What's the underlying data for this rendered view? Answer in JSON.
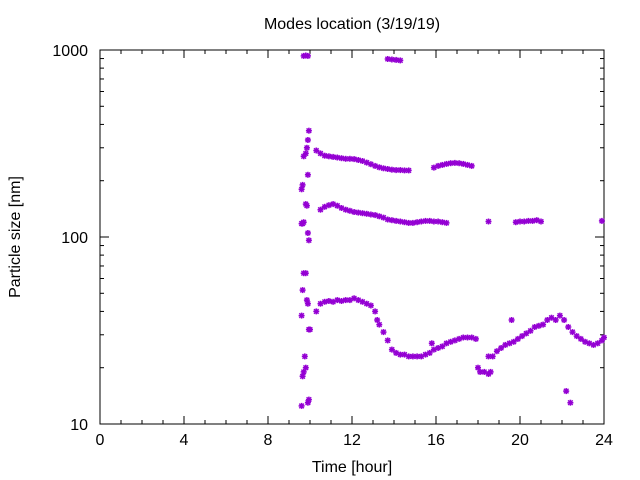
{
  "chart_data": {
    "type": "scatter",
    "title": "Modes location (3/19/19)",
    "xlabel": "Time [hour]",
    "ylabel": "Particle size [nm]",
    "xlim": [
      0,
      24
    ],
    "ylim": [
      10,
      1000
    ],
    "yscale": "log",
    "xticks": [
      0,
      4,
      8,
      12,
      16,
      20,
      24
    ],
    "yticks": [
      10,
      100,
      1000
    ],
    "grid": false,
    "marker_color": "#9400d3",
    "series": [
      {
        "points": [
          [
            9.6,
            12.5
          ],
          [
            9.65,
            18
          ],
          [
            9.7,
            19
          ],
          [
            9.75,
            23
          ],
          [
            9.8,
            20
          ],
          [
            9.9,
            13
          ],
          [
            9.95,
            13.5
          ],
          [
            9.6,
            38
          ],
          [
            9.65,
            52
          ],
          [
            9.7,
            64
          ],
          [
            9.8,
            64
          ],
          [
            9.85,
            46
          ],
          [
            9.9,
            44
          ],
          [
            9.95,
            32
          ],
          [
            10.0,
            32
          ],
          [
            9.6,
            118
          ],
          [
            9.65,
            118
          ],
          [
            9.7,
            120
          ],
          [
            9.8,
            150
          ],
          [
            9.85,
            147
          ],
          [
            9.9,
            105
          ],
          [
            9.95,
            96
          ],
          [
            9.6,
            180
          ],
          [
            9.65,
            190
          ],
          [
            9.7,
            270
          ],
          [
            9.8,
            280
          ],
          [
            9.85,
            300
          ],
          [
            9.9,
            330
          ],
          [
            9.95,
            370
          ],
          [
            9.9,
            215
          ],
          [
            9.7,
            930
          ],
          [
            9.8,
            935
          ],
          [
            9.9,
            930
          ],
          [
            13.7,
            895
          ],
          [
            13.9,
            890
          ],
          [
            14.1,
            885
          ],
          [
            14.3,
            880
          ],
          [
            10.3,
            290
          ],
          [
            10.5,
            280
          ],
          [
            10.7,
            272
          ],
          [
            10.9,
            270
          ],
          [
            11.1,
            268
          ],
          [
            11.3,
            266
          ],
          [
            11.5,
            264
          ],
          [
            11.7,
            262
          ],
          [
            11.9,
            262
          ],
          [
            12.1,
            261
          ],
          [
            12.3,
            258
          ],
          [
            12.5,
            255
          ],
          [
            12.7,
            250
          ],
          [
            12.9,
            245
          ],
          [
            13.1,
            240
          ],
          [
            13.3,
            236
          ],
          [
            13.5,
            233
          ],
          [
            13.7,
            231
          ],
          [
            13.9,
            229
          ],
          [
            14.1,
            228
          ],
          [
            14.3,
            228
          ],
          [
            14.5,
            227
          ],
          [
            14.7,
            227
          ],
          [
            15.9,
            235
          ],
          [
            16.1,
            240
          ],
          [
            16.3,
            243
          ],
          [
            16.5,
            246
          ],
          [
            16.7,
            248
          ],
          [
            16.9,
            249
          ],
          [
            17.1,
            248
          ],
          [
            17.3,
            246
          ],
          [
            17.5,
            243
          ],
          [
            17.7,
            240
          ],
          [
            10.5,
            140
          ],
          [
            10.7,
            145
          ],
          [
            10.9,
            148
          ],
          [
            11.1,
            150
          ],
          [
            11.3,
            147
          ],
          [
            11.5,
            143
          ],
          [
            11.7,
            140
          ],
          [
            11.9,
            138
          ],
          [
            12.1,
            136
          ],
          [
            12.3,
            135
          ],
          [
            12.5,
            134
          ],
          [
            12.7,
            133
          ],
          [
            12.9,
            132
          ],
          [
            13.1,
            131
          ],
          [
            13.3,
            129
          ],
          [
            13.5,
            127
          ],
          [
            13.7,
            124
          ],
          [
            13.9,
            123
          ],
          [
            14.1,
            122
          ],
          [
            14.3,
            121
          ],
          [
            14.5,
            120
          ],
          [
            14.7,
            119
          ],
          [
            14.9,
            119
          ],
          [
            15.1,
            120
          ],
          [
            15.3,
            121
          ],
          [
            15.5,
            122
          ],
          [
            15.7,
            122
          ],
          [
            15.9,
            121
          ],
          [
            16.1,
            121
          ],
          [
            16.3,
            120
          ],
          [
            16.5,
            119
          ],
          [
            18.5,
            121
          ],
          [
            19.8,
            120
          ],
          [
            20.0,
            121
          ],
          [
            20.2,
            121
          ],
          [
            20.4,
            122
          ],
          [
            20.6,
            122
          ],
          [
            20.8,
            123
          ],
          [
            21.0,
            121
          ],
          [
            23.9,
            122
          ],
          [
            10.3,
            40
          ],
          [
            10.5,
            44
          ],
          [
            10.7,
            45
          ],
          [
            10.9,
            45.5
          ],
          [
            11.1,
            45
          ],
          [
            11.3,
            46
          ],
          [
            11.5,
            45.5
          ],
          [
            11.7,
            46
          ],
          [
            11.9,
            46
          ],
          [
            12.1,
            47
          ],
          [
            12.3,
            46
          ],
          [
            12.5,
            45
          ],
          [
            12.7,
            44
          ],
          [
            12.9,
            43
          ],
          [
            13.1,
            40
          ],
          [
            13.2,
            36
          ],
          [
            13.3,
            34
          ],
          [
            13.5,
            31
          ],
          [
            13.7,
            28
          ],
          [
            13.9,
            25
          ],
          [
            14.1,
            24
          ],
          [
            14.3,
            23.5
          ],
          [
            14.5,
            23.5
          ],
          [
            14.7,
            23
          ],
          [
            14.9,
            23
          ],
          [
            15.1,
            23
          ],
          [
            15.3,
            23
          ],
          [
            15.5,
            23.5
          ],
          [
            15.7,
            24
          ],
          [
            15.8,
            27
          ],
          [
            15.9,
            25
          ],
          [
            16.1,
            25.5
          ],
          [
            16.3,
            26
          ],
          [
            16.5,
            27
          ],
          [
            16.7,
            27.5
          ],
          [
            16.9,
            28
          ],
          [
            17.1,
            28.5
          ],
          [
            17.3,
            29
          ],
          [
            17.5,
            29
          ],
          [
            17.7,
            29
          ],
          [
            17.9,
            28.5
          ],
          [
            18.0,
            20
          ],
          [
            18.1,
            19
          ],
          [
            18.3,
            19
          ],
          [
            18.5,
            18.5
          ],
          [
            18.6,
            19
          ],
          [
            18.5,
            23
          ],
          [
            18.7,
            23
          ],
          [
            18.9,
            24.5
          ],
          [
            19.1,
            25.5
          ],
          [
            19.3,
            26.5
          ],
          [
            19.5,
            27
          ],
          [
            19.7,
            27.5
          ],
          [
            19.9,
            28.5
          ],
          [
            20.1,
            29.5
          ],
          [
            20.3,
            30.5
          ],
          [
            20.5,
            31.5
          ],
          [
            20.7,
            33
          ],
          [
            20.9,
            33.5
          ],
          [
            21.1,
            34
          ],
          [
            21.3,
            36
          ],
          [
            21.5,
            37
          ],
          [
            21.7,
            36
          ],
          [
            21.9,
            38
          ],
          [
            22.1,
            36
          ],
          [
            22.3,
            33
          ],
          [
            22.5,
            31
          ],
          [
            22.7,
            29.5
          ],
          [
            22.9,
            28.5
          ],
          [
            23.1,
            27.5
          ],
          [
            23.3,
            27
          ],
          [
            23.5,
            26.5
          ],
          [
            23.7,
            27
          ],
          [
            23.9,
            28
          ],
          [
            24.0,
            29
          ],
          [
            19.6,
            36
          ],
          [
            22.2,
            15
          ],
          [
            22.4,
            13
          ]
        ]
      }
    ]
  }
}
